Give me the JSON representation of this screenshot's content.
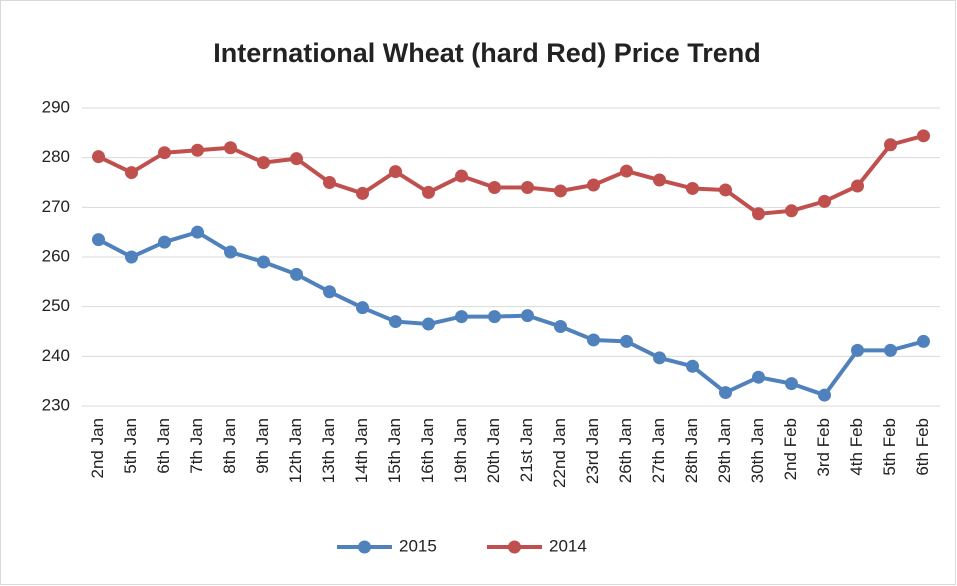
{
  "chart_data": {
    "type": "line",
    "title": "International Wheat (hard Red) Price Trend",
    "categories": [
      "2nd Jan",
      "5th Jan",
      "6th Jan",
      "7th Jan",
      "8th Jan",
      "9th Jan",
      "12th Jan",
      "13th Jan",
      "14th Jan",
      "15th Jan",
      "16th Jan",
      "19th Jan",
      "20th Jan",
      "21st Jan",
      "22nd Jan",
      "23rd Jan",
      "26th Jan",
      "27th Jan",
      "28th Jan",
      "29th Jan",
      "30th Jan",
      "2nd Feb",
      "3rd Feb",
      "4th Feb",
      "5th Feb",
      "6th Feb"
    ],
    "series": [
      {
        "name": "2015",
        "color": "#4f81bd",
        "values": [
          263.5,
          260,
          263,
          265,
          261,
          259,
          256.5,
          253,
          249.8,
          247,
          246.5,
          248,
          248,
          248.2,
          246,
          243.3,
          243,
          239.7,
          238,
          232.7,
          235.8,
          234.5,
          232.2,
          241.2,
          241.2,
          243
        ]
      },
      {
        "name": "2014",
        "color": "#c0504d",
        "values": [
          280.2,
          277,
          281,
          281.5,
          282,
          279,
          279.8,
          275,
          272.8,
          277.2,
          273,
          276.3,
          274,
          274,
          273.3,
          274.5,
          277.3,
          275.5,
          273.8,
          273.5,
          268.7,
          269.3,
          271.2,
          274.3,
          282.6,
          284.4
        ]
      }
    ],
    "ylim": [
      230,
      290
    ],
    "yticks": [
      230,
      240,
      250,
      260,
      270,
      280,
      290
    ],
    "grid": true,
    "legend": "bottom"
  }
}
